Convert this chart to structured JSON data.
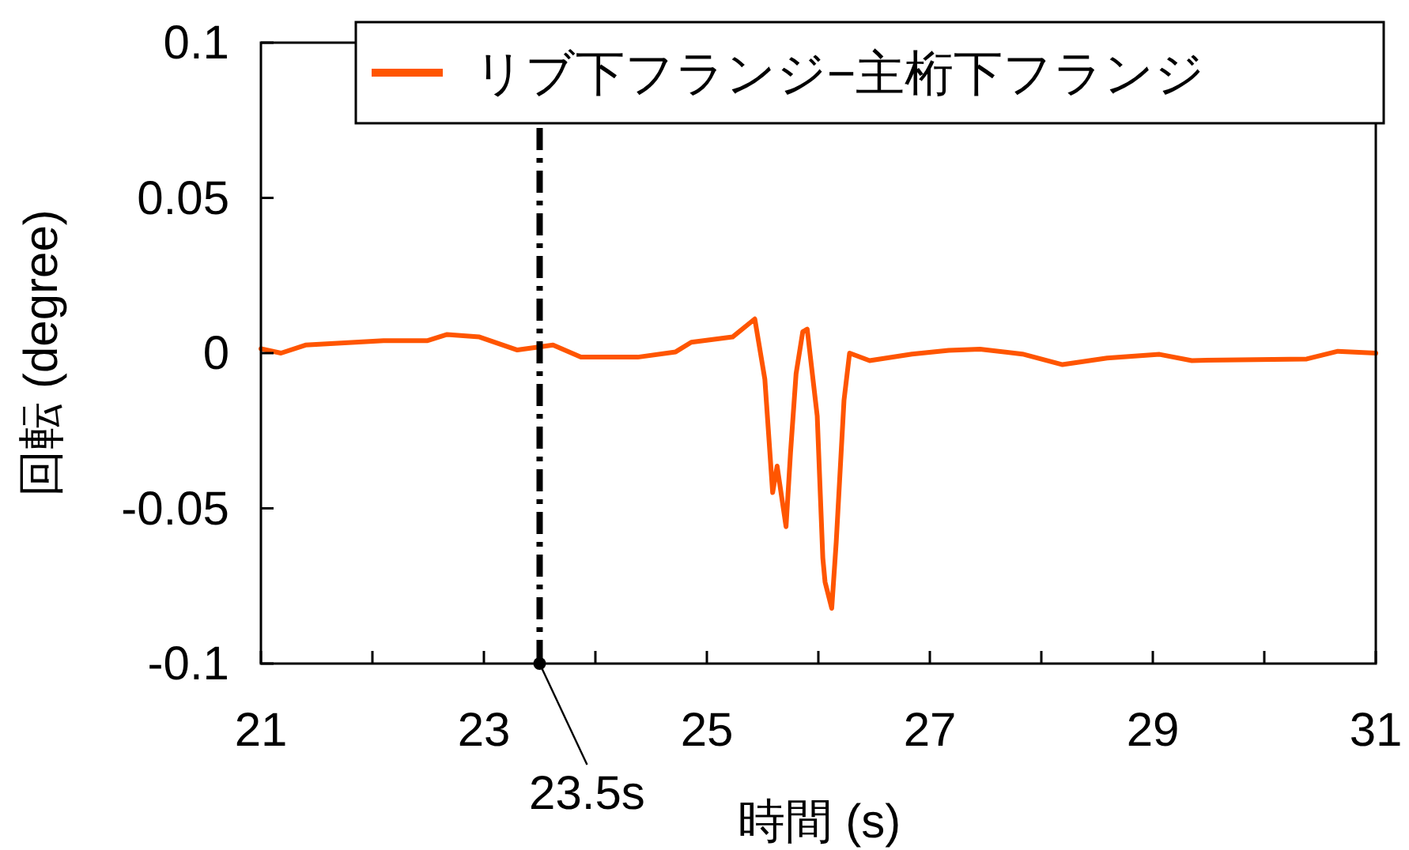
{
  "chart_data": {
    "type": "line",
    "xlabel": "時間 (s)",
    "ylabel": "回転 (degree)",
    "xlim": [
      21,
      31
    ],
    "ylim": [
      -0.1,
      0.1
    ],
    "xticks": [
      21,
      {
        "value": 22,
        "label": null
      },
      23,
      {
        "value": 24,
        "label": null
      },
      25,
      {
        "value": 26,
        "label": null
      },
      27,
      {
        "value": 28,
        "label": null
      },
      29,
      {
        "value": 30,
        "label": null
      },
      31
    ],
    "yticks": [
      -0.1,
      -0.05,
      0,
      0.05,
      0.1
    ],
    "grid": false,
    "legend": "top right",
    "marker": "none",
    "line_style": "solid",
    "ref_lines": [
      {
        "axis": "x",
        "value": 23.5,
        "color": "#000000",
        "line_style": "dashdot"
      }
    ],
    "annotations": [
      {
        "text": "23.5s",
        "x": 23.5,
        "y": -0.1
      }
    ],
    "series": [
      {
        "name": "リブ下フランジ−主桁下フランジ",
        "color": "#ff5500",
        "x": [
          21.0,
          21.18,
          21.4,
          22.1,
          22.49,
          22.67,
          22.96,
          23.3,
          23.62,
          23.87,
          24.38,
          24.72,
          24.86,
          25.23,
          25.43,
          25.52,
          25.59,
          25.63,
          25.71,
          25.75,
          25.8,
          25.86,
          25.9,
          25.99,
          26.04,
          26.06,
          26.12,
          26.16,
          26.23,
          26.28,
          26.46,
          26.84,
          27.17,
          27.45,
          27.83,
          28.19,
          28.59,
          29.06,
          29.35,
          29.63,
          30.38,
          30.66,
          31.0
        ],
        "values": [
          0.0014,
          0.0,
          0.0026,
          0.004,
          0.004,
          0.006,
          0.0052,
          0.001,
          0.0026,
          -0.0013,
          -0.0013,
          0.0004,
          0.0035,
          0.0052,
          0.011,
          -0.0084,
          -0.0449,
          -0.0364,
          -0.0559,
          -0.0322,
          -0.0067,
          0.0069,
          0.0077,
          -0.0203,
          -0.066,
          -0.0737,
          -0.0822,
          -0.061,
          -0.0152,
          0.0,
          -0.0024,
          -0.0003,
          0.0009,
          0.0013,
          -0.0003,
          -0.0037,
          -0.0016,
          -0.0004,
          -0.0024,
          -0.0022,
          -0.0019,
          0.0006,
          0.0
        ]
      }
    ]
  }
}
